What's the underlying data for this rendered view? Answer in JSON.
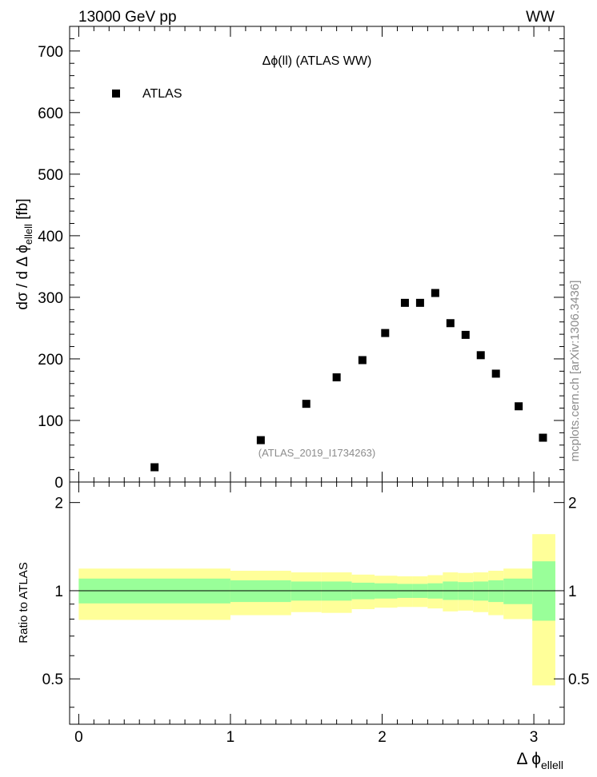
{
  "header": {
    "energy_label": "13000 GeV pp",
    "process_label": "WW",
    "side_label": "mcplots.cern.ch [arXiv:1306.3436]"
  },
  "chart_data": [
    {
      "type": "scatter",
      "title": "Δϕ(ll) (ATLAS WW)",
      "ylabel": "dσ / d Δ ϕ_ellell [fb]",
      "ylabel_main": "dσ / d Δ ϕ",
      "ylabel_sub": "ellell",
      "ylabel_unit": " [fb]",
      "xlim": [
        -0.06,
        3.2
      ],
      "ylim": [
        0,
        740
      ],
      "y_ticks": [
        0,
        100,
        200,
        300,
        400,
        500,
        600,
        700
      ],
      "y_tick_labels": [
        "0",
        "100",
        "200",
        "300",
        "400",
        "500",
        "600",
        "700"
      ],
      "analysis_label": "(ATLAS_2019_I1734263)",
      "legend": {
        "placement": "top-left",
        "entries": [
          "ATLAS"
        ]
      },
      "series": [
        {
          "name": "ATLAS",
          "x": [
            0.5,
            1.2,
            1.5,
            1.7,
            1.87,
            2.02,
            2.15,
            2.25,
            2.35,
            2.45,
            2.55,
            2.65,
            2.75,
            2.9,
            3.06
          ],
          "y": [
            24,
            68,
            127,
            170,
            198,
            242,
            291,
            291,
            307,
            258,
            239,
            206,
            176,
            123,
            72
          ]
        }
      ]
    },
    {
      "type": "area",
      "ylabel": "Ratio to ATLAS",
      "xlabel": "Δ ϕ_ellell",
      "xlabel_main": "Δ ϕ",
      "xlabel_sub": "ellell",
      "xlim": [
        -0.06,
        3.2
      ],
      "ylim": [
        0.35,
        2.35
      ],
      "x_ticks": [
        0,
        1,
        2,
        3
      ],
      "x_tick_labels": [
        "0",
        "1",
        "2",
        "3"
      ],
      "y_ticks": [
        0.5,
        1,
        2
      ],
      "y_tick_labels": [
        "0.5",
        "1",
        "2"
      ],
      "reference": 1,
      "colors": {
        "inner_band": "#99ff99",
        "outer_band": "#ffff99",
        "markers": "#000000"
      },
      "bins": [
        {
          "lo": 0.0,
          "hi": 1.0,
          "inner": [
            0.905,
            1.1
          ],
          "outer": [
            0.795,
            1.19
          ]
        },
        {
          "lo": 1.0,
          "hi": 1.4,
          "inner": [
            0.915,
            1.085
          ],
          "outer": [
            0.825,
            1.17
          ]
        },
        {
          "lo": 1.4,
          "hi": 1.6,
          "inner": [
            0.925,
            1.075
          ],
          "outer": [
            0.845,
            1.155
          ]
        },
        {
          "lo": 1.6,
          "hi": 1.8,
          "inner": [
            0.925,
            1.075
          ],
          "outer": [
            0.84,
            1.155
          ]
        },
        {
          "lo": 1.8,
          "hi": 1.95,
          "inner": [
            0.935,
            1.065
          ],
          "outer": [
            0.865,
            1.135
          ]
        },
        {
          "lo": 1.95,
          "hi": 2.1,
          "inner": [
            0.94,
            1.06
          ],
          "outer": [
            0.875,
            1.125
          ]
        },
        {
          "lo": 2.1,
          "hi": 2.2,
          "inner": [
            0.945,
            1.055
          ],
          "outer": [
            0.88,
            1.12
          ]
        },
        {
          "lo": 2.2,
          "hi": 2.3,
          "inner": [
            0.945,
            1.055
          ],
          "outer": [
            0.88,
            1.12
          ]
        },
        {
          "lo": 2.3,
          "hi": 2.4,
          "inner": [
            0.94,
            1.06
          ],
          "outer": [
            0.87,
            1.13
          ]
        },
        {
          "lo": 2.4,
          "hi": 2.5,
          "inner": [
            0.93,
            1.075
          ],
          "outer": [
            0.85,
            1.155
          ]
        },
        {
          "lo": 2.5,
          "hi": 2.6,
          "inner": [
            0.93,
            1.07
          ],
          "outer": [
            0.855,
            1.15
          ]
        },
        {
          "lo": 2.6,
          "hi": 2.7,
          "inner": [
            0.925,
            1.075
          ],
          "outer": [
            0.845,
            1.155
          ]
        },
        {
          "lo": 2.7,
          "hi": 2.8,
          "inner": [
            0.915,
            1.085
          ],
          "outer": [
            0.825,
            1.17
          ]
        },
        {
          "lo": 2.8,
          "hi": 2.99,
          "inner": [
            0.9,
            1.1
          ],
          "outer": [
            0.8,
            1.19
          ]
        },
        {
          "lo": 2.99,
          "hi": 3.1416,
          "inner": [
            0.79,
            1.26
          ],
          "outer": [
            0.475,
            1.56
          ]
        }
      ]
    }
  ]
}
